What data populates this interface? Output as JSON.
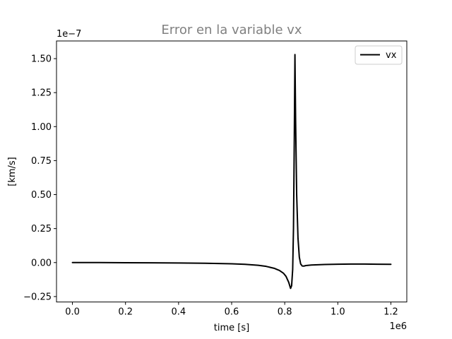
{
  "chart_data": {
    "type": "line",
    "title": "Error en la variable vx",
    "xlabel": "time [s]",
    "ylabel": "[km/s]",
    "x_offset_text": "1e6",
    "y_offset_text": "1e−7",
    "xlim": [
      -60000,
      1260000
    ],
    "ylim": [
      -2.9e-08,
      1.63e-07
    ],
    "xticks": [
      0,
      200000,
      400000,
      600000,
      800000,
      1000000,
      1200000
    ],
    "xtick_labels": [
      "0.0",
      "0.2",
      "0.4",
      "0.6",
      "0.8",
      "1.0",
      "1.2"
    ],
    "yticks": [
      -2.5e-08,
      0,
      2.5e-08,
      5e-08,
      7.5e-08,
      1e-07,
      1.25e-07,
      1.5e-07
    ],
    "ytick_labels": [
      "−0.25",
      "0.00",
      "0.25",
      "0.50",
      "0.75",
      "1.00",
      "1.25",
      "1.50"
    ],
    "grid": false,
    "legend_position": "upper right",
    "series": [
      {
        "name": "vx",
        "color": "#000000",
        "x": [
          0,
          100000,
          200000,
          300000,
          400000,
          500000,
          550000,
          600000,
          650000,
          700000,
          730000,
          760000,
          780000,
          795000,
          805000,
          815000,
          822000,
          826000,
          830000,
          833000,
          836000,
          838500,
          841000,
          845000,
          850000,
          855000,
          860000,
          866000,
          872000,
          880000,
          900000,
          950000,
          1000000,
          1050000,
          1100000,
          1150000,
          1200000
        ],
        "y": [
          0,
          0,
          -1e-10,
          -2e-10,
          -3e-10,
          -5e-10,
          -7e-10,
          -9e-10,
          -1.3e-09,
          -2e-09,
          -2.8e-09,
          -4.2e-09,
          -5.8e-09,
          -7.8e-09,
          -1.02e-08,
          -1.45e-08,
          -1.9e-08,
          -1.7e-08,
          -5e-09,
          2.5e-08,
          9e-08,
          1.53e-07,
          1.05e-07,
          5e-08,
          1.8e-08,
          4e-09,
          -1e-09,
          -2.5e-09,
          -2.6e-09,
          -2.2e-09,
          -1.8e-09,
          -1.4e-09,
          -1.2e-09,
          -1.1e-09,
          -1.1e-09,
          -1.2e-09,
          -1.3e-09
        ]
      }
    ]
  }
}
